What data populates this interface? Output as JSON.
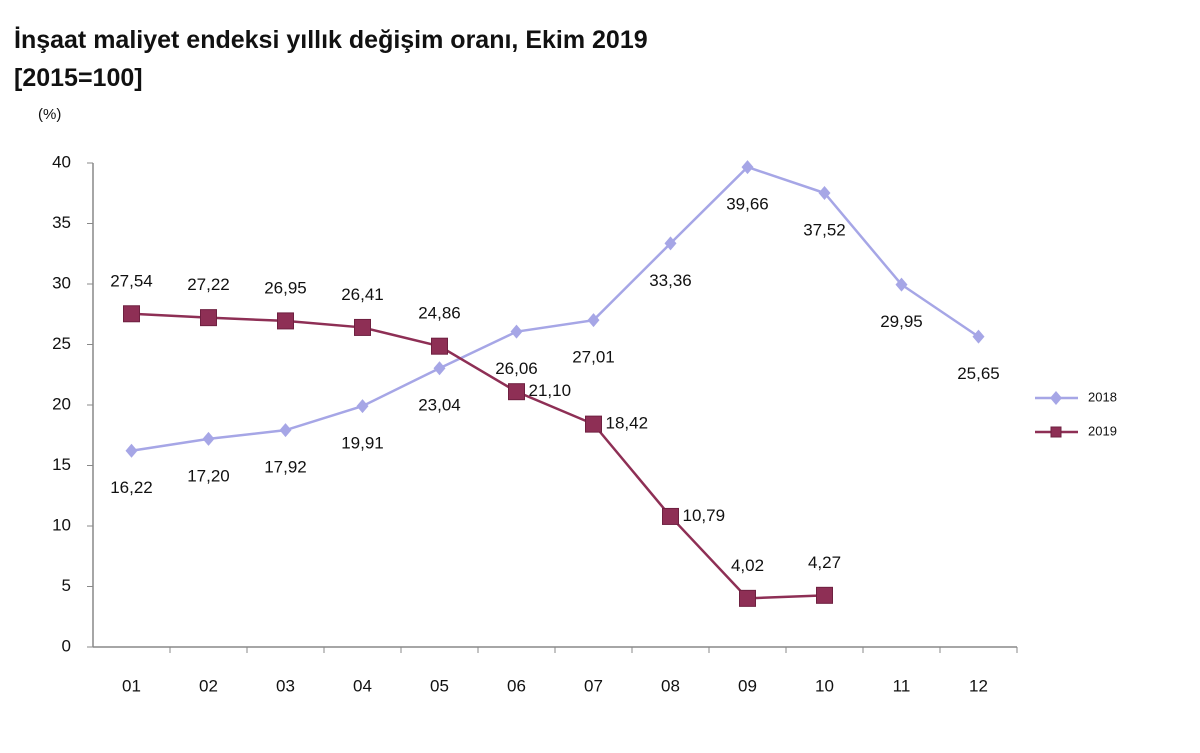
{
  "chart_data": {
    "type": "line",
    "title": "İnşaat maliyet endeksi yıllık değişim oranı, Ekim 2019",
    "subtitle": "[2015=100]",
    "y_label": "(%)",
    "categories": [
      "01",
      "02",
      "03",
      "04",
      "05",
      "06",
      "07",
      "08",
      "09",
      "10",
      "11",
      "12"
    ],
    "series": [
      {
        "name": "2018",
        "color": "#a6a6e6",
        "marker": "diamond",
        "values": [
          16.22,
          17.2,
          17.92,
          19.91,
          23.04,
          26.06,
          27.01,
          33.36,
          39.66,
          37.52,
          29.95,
          25.65
        ],
        "value_labels": [
          "16,22",
          "17,20",
          "17,92",
          "19,91",
          "23,04",
          "26,06",
          "27,01",
          "33,36",
          "39,66",
          "37,52",
          "29,95",
          "25,65"
        ]
      },
      {
        "name": "2019",
        "color": "#8e2f55",
        "marker": "square",
        "values": [
          27.54,
          27.22,
          26.95,
          26.41,
          24.86,
          21.1,
          18.42,
          10.79,
          4.02,
          4.27,
          null,
          null
        ],
        "value_labels": [
          "27,54",
          "27,22",
          "26,95",
          "26,41",
          "24,86",
          "21,10",
          "18,42",
          "10,79",
          "4,02",
          "4,27",
          null,
          null
        ]
      }
    ],
    "ylim": [
      0,
      40
    ],
    "yticks": [
      0,
      5,
      10,
      15,
      20,
      25,
      30,
      35,
      40
    ],
    "grid": false,
    "legend": "right"
  }
}
